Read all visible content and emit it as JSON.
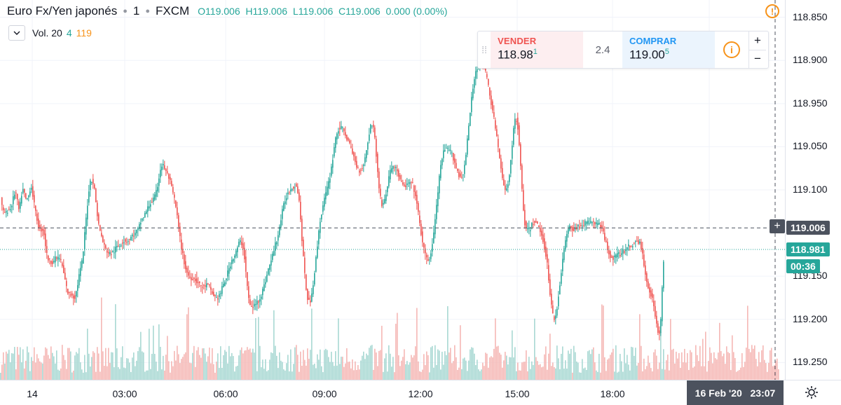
{
  "header": {
    "symbol": "Euro Fx/Yen japonés",
    "interval": "1",
    "exchange": "FXCM",
    "open": "O119.006",
    "high": "H119.006",
    "low": "L119.006",
    "close": "C119.006",
    "change": "0.000 (0.00%)"
  },
  "volume_legend": {
    "label": "Vol. 20",
    "value1": "4",
    "value2": "119"
  },
  "trade_panel": {
    "sell_label": "VENDER",
    "sell_price_main": "118.98",
    "sell_price_frac": "1",
    "spread": "2.4",
    "buy_label": "COMPRAR",
    "buy_price_main": "119.00",
    "buy_price_frac": "5",
    "plus": "+",
    "minus": "−",
    "info": "i"
  },
  "warning": "!",
  "price_axis": {
    "labels": [
      "119.250",
      "119.200",
      "119.150",
      "119.100",
      "119.050",
      "118.950",
      "118.900",
      "118.850"
    ],
    "crosshair_price": "119.006",
    "last_price": "118.981",
    "countdown": "00:36"
  },
  "time_axis": {
    "labels": [
      "14",
      "03:00",
      "06:00",
      "09:00",
      "12:00",
      "15:00",
      "18:00"
    ],
    "cursor_date": "16 Feb '20",
    "cursor_time": "23:07"
  },
  "colors": {
    "up": "#26a69a",
    "down": "#ef5350",
    "vol_up": "#a8d8d3",
    "vol_down": "#f5b7b5",
    "grid": "#f0f3fa"
  },
  "chart_data": {
    "type": "candlestick",
    "title": "Euro Fx/Yen japonés · 1 · FXCM",
    "ylim": [
      118.83,
      119.27
    ],
    "x_ticks": [
      "14",
      "03:00",
      "06:00",
      "09:00",
      "12:00",
      "15:00",
      "18:00"
    ],
    "y_ticks": [
      118.85,
      118.9,
      118.95,
      119.05,
      119.1,
      119.15,
      119.2,
      119.25
    ],
    "grid": true,
    "crosshair_price": 119.006,
    "last_price": 118.981,
    "path_x": [
      0,
      2,
      4,
      6,
      8,
      10,
      12,
      14,
      16,
      18,
      20,
      22,
      24,
      26,
      28,
      30,
      32,
      34,
      36,
      38,
      40,
      42,
      44,
      46,
      48,
      50,
      52,
      54,
      56,
      58,
      60,
      62,
      64,
      66,
      68,
      70,
      72,
      74,
      76,
      78,
      80,
      82,
      84,
      86,
      88,
      90,
      92,
      94,
      96,
      98,
      100,
      102,
      104,
      106,
      108,
      110,
      112,
      114,
      116,
      118,
      120,
      122,
      124,
      126,
      128,
      130,
      132,
      134,
      136,
      138,
      140,
      142,
      144,
      146,
      148,
      150,
      152,
      154,
      156,
      158,
      160,
      162,
      164,
      166,
      168,
      170,
      172,
      174,
      176,
      178,
      180,
      182,
      184,
      186,
      188,
      190,
      192,
      194,
      196,
      198,
      200,
      202,
      204,
      206,
      208,
      210,
      212,
      214,
      216,
      218,
      220,
      222,
      224,
      226,
      228,
      230,
      232,
      234,
      236,
      238,
      240,
      242,
      244,
      246,
      248,
      250,
      252,
      254,
      256,
      258,
      260,
      262,
      264,
      266,
      268,
      270,
      272,
      274,
      276,
      278,
      280,
      282,
      284,
      286,
      288,
      290,
      292,
      294,
      296,
      298,
      300,
      302,
      304,
      306,
      308,
      310,
      312,
      314,
      316,
      318,
      320,
      322,
      324,
      326,
      328,
      330,
      332,
      334,
      336,
      338,
      340,
      342,
      344,
      346,
      348,
      350,
      352,
      354,
      356,
      358,
      360,
      362,
      364,
      366,
      368,
      370,
      372,
      374,
      376,
      378,
      380,
      382,
      384,
      386,
      388,
      390,
      392,
      394,
      396,
      398,
      400,
      402,
      404,
      406,
      408,
      410,
      412,
      414,
      416,
      418,
      420,
      422,
      424,
      426,
      428,
      430,
      432,
      434,
      436,
      438,
      440,
      442,
      444,
      446,
      448,
      450,
      452,
      454,
      456,
      458,
      460,
      462,
      464,
      466,
      468,
      470,
      472,
      474,
      476,
      478,
      480,
      482,
      484,
      486,
      488,
      490,
      492,
      494,
      496,
      498,
      500,
      502,
      504,
      506,
      508,
      510,
      512,
      514,
      516,
      518,
      520,
      522,
      524,
      526,
      528,
      530,
      532,
      534,
      536,
      538,
      540,
      542,
      544,
      546,
      548,
      550,
      552,
      554,
      556,
      558,
      560,
      562,
      564,
      566,
      568,
      570,
      572,
      574,
      576,
      578,
      580,
      582,
      584,
      586,
      588,
      590,
      592,
      594,
      596,
      598,
      600,
      602,
      604,
      606,
      608,
      610,
      612,
      614,
      616,
      618,
      620,
      622,
      624,
      626,
      628,
      630,
      632,
      634,
      636,
      638,
      640,
      642,
      644,
      646,
      648,
      650,
      652,
      654,
      656,
      658,
      660,
      662,
      664,
      666,
      668,
      670,
      672,
      674,
      676,
      678,
      680,
      682,
      684,
      686,
      688,
      690,
      692,
      694,
      696,
      698,
      700,
      702,
      704,
      706,
      708,
      710,
      712,
      714,
      716,
      718,
      720,
      722,
      724,
      726,
      728,
      730,
      732,
      734,
      736,
      738,
      740,
      742,
      744,
      746,
      748,
      750,
      752,
      754,
      756,
      758,
      760,
      762,
      764,
      766,
      768,
      770,
      772,
      774,
      776,
      778,
      780,
      782,
      784,
      786,
      788,
      790,
      792,
      794,
      796,
      798,
      800,
      802,
      804,
      806,
      808,
      810,
      812,
      814,
      816,
      818,
      820,
      822,
      824,
      826,
      828,
      830,
      832,
      834,
      836,
      838,
      840,
      842,
      844,
      846,
      848,
      850,
      852,
      854,
      856,
      858,
      860,
      862,
      864,
      866,
      868,
      870,
      872,
      874,
      876,
      878,
      880,
      882,
      884,
      886,
      888,
      890,
      892,
      894,
      896,
      898,
      900,
      902,
      904,
      906,
      908,
      910,
      912,
      914,
      916,
      918,
      920,
      922,
      924,
      926,
      928,
      930,
      932,
      934,
      936,
      938,
      940,
      942,
      944,
      946,
      948,
      950,
      952,
      954,
      956,
      958,
      960,
      962,
      964,
      966,
      968,
      970,
      972,
      974,
      976,
      978,
      980,
      982,
      984,
      986,
      988,
      990,
      992,
      994,
      996,
      998,
      1000,
      1002,
      1004,
      1006,
      1008,
      1010,
      1012,
      1014,
      1016,
      1018,
      1020,
      1022,
      1024,
      1026,
      1028,
      1030,
      1032,
      1034,
      1036,
      1038,
      1040,
      1042,
      1044,
      1046,
      1048,
      1050,
      1052,
      1054,
      1056,
      1058,
      1060,
      1062,
      1064,
      1066,
      1068,
      1070,
      1072,
      1074,
      1076,
      1078,
      1080,
      1082,
      1084,
      1086,
      1088,
      1090,
      1092,
      1094,
      1096,
      1098,
      1100,
      1102,
      1104,
      1106,
      1108,
      1110
    ],
    "path_close": [
      119.041,
      119.031,
      119.024,
      119.024,
      119.023,
      119.026,
      119.028,
      119.028,
      119.033,
      119.04,
      119.046,
      119.045,
      119.036,
      119.027,
      119.033,
      119.045,
      119.05,
      119.045,
      119.039,
      119.04,
      119.043,
      119.051,
      119.053,
      119.044,
      119.033,
      119.023,
      119.016,
      119.008,
      119.005,
      119.004,
      119.004,
      118.999,
      118.986,
      118.975,
      118.97,
      118.968,
      118.967,
      118.967,
      118.968,
      118.97,
      118.971,
      118.971,
      118.971,
      118.967,
      118.961,
      118.953,
      118.945,
      118.937,
      118.931,
      118.929,
      118.929,
      118.929,
      118.926,
      118.926,
      118.932,
      118.941,
      118.951,
      118.958,
      118.966,
      118.979,
      118.999,
      119.017,
      119.034,
      119.05,
      119.06,
      119.062,
      119.058,
      119.05,
      119.036,
      119.021,
      119.01,
      119.002,
      118.996,
      118.99,
      118.985,
      118.981,
      118.979,
      118.977,
      118.976,
      118.977,
      118.978,
      118.979,
      118.982,
      118.984,
      118.985,
      118.986,
      118.988,
      118.99,
      118.991,
      118.991,
      118.991,
      118.992,
      118.993,
      118.995,
      118.997,
      118.998,
      118.999,
      119.002,
      119.004,
      119.008,
      119.013,
      119.016,
      119.019,
      119.022,
      119.025,
      119.029,
      119.032,
      119.035,
      119.037,
      119.039,
      119.042,
      119.047,
      119.055,
      119.065,
      119.074,
      119.078,
      119.078,
      119.075,
      119.071,
      119.068,
      119.064,
      119.059,
      119.052,
      119.046,
      119.039,
      119.03,
      119.019,
      119.006,
      118.994,
      118.983,
      118.974,
      118.966,
      118.959,
      118.954,
      118.951,
      118.949,
      118.948,
      118.948,
      118.947,
      118.946,
      118.944,
      118.942,
      118.94,
      118.939,
      118.938,
      118.938,
      118.939,
      118.94,
      118.939,
      118.937,
      118.934,
      118.93,
      118.928,
      118.926,
      118.925,
      118.925,
      118.928,
      118.931,
      118.936,
      118.94,
      118.944,
      118.949,
      118.954,
      118.959,
      118.964,
      118.969,
      118.972,
      118.974,
      118.978,
      118.983,
      118.988,
      118.99,
      118.988,
      118.983,
      118.971,
      118.955,
      118.938,
      118.924,
      118.916,
      118.914,
      118.915,
      118.916,
      118.918,
      118.92,
      118.922,
      118.925,
      118.929,
      118.934,
      118.939,
      118.945,
      118.952,
      118.958,
      118.963,
      118.968,
      118.974,
      118.981,
      118.987,
      118.992,
      118.998,
      119.007,
      119.016,
      119.025,
      119.032,
      119.038,
      119.043,
      119.046,
      119.049,
      119.051,
      119.053,
      119.054,
      119.055,
      119.054,
      119.049,
      119.037,
      119.016,
      118.993,
      118.971,
      118.951,
      118.936,
      118.925,
      118.92,
      118.922,
      118.931,
      118.942,
      118.955,
      118.97,
      118.986,
      119.002,
      119.014,
      119.024,
      119.032,
      119.039,
      119.045,
      119.052,
      119.058,
      119.066,
      119.076,
      119.087,
      119.1,
      119.11,
      119.116,
      119.12,
      119.121,
      119.121,
      119.12,
      119.118,
      119.115,
      119.11,
      119.106,
      119.102,
      119.098,
      119.093,
      119.088,
      119.082,
      119.078,
      119.074,
      119.073,
      119.074,
      119.076,
      119.081,
      119.087,
      119.096,
      119.106,
      119.116,
      119.124,
      119.127,
      119.122,
      119.109,
      119.09,
      119.071,
      119.053,
      119.04,
      119.034,
      119.034,
      119.039,
      119.046,
      119.055,
      119.064,
      119.071,
      119.076,
      119.078,
      119.077,
      119.075,
      119.071,
      119.067,
      119.062,
      119.058,
      119.055,
      119.054,
      119.055,
      119.056,
      119.057,
      119.058,
      119.057,
      119.055,
      119.05,
      119.043,
      119.033,
      119.022,
      119.011,
      119.0,
      118.99,
      118.981,
      118.974,
      118.97,
      118.969,
      118.971,
      118.977,
      118.987,
      119.0,
      119.015,
      119.032,
      119.048,
      119.064,
      119.077,
      119.087,
      119.093,
      119.096,
      119.097,
      119.097,
      119.096,
      119.094,
      119.091,
      119.087,
      119.082,
      119.076,
      119.071,
      119.067,
      119.065,
      119.066,
      119.07,
      119.079,
      119.091,
      119.107,
      119.124,
      119.14,
      119.155,
      119.168,
      119.179,
      119.187,
      119.192,
      119.195,
      119.196,
      119.196,
      119.194,
      119.191,
      119.186,
      119.179,
      119.17,
      119.16,
      119.151,
      119.142,
      119.132,
      119.122,
      119.111,
      119.099,
      119.086,
      119.074,
      119.062,
      119.054,
      119.05,
      119.052,
      119.058,
      119.069,
      119.085,
      119.103,
      119.119,
      119.13,
      119.132,
      119.123,
      119.104,
      119.077,
      119.049,
      119.026,
      119.012,
      119.005,
      119.003,
      119.004,
      119.006,
      119.009,
      119.012,
      119.013,
      119.012,
      119.01,
      119.006,
      119.002,
      118.998,
      118.992,
      118.984,
      118.975,
      118.963,
      118.948,
      118.931,
      118.916,
      118.905,
      118.902,
      118.905,
      118.914,
      118.927,
      118.941,
      118.956,
      118.969,
      118.981,
      118.991,
      118.999,
      119.004,
      119.006,
      119.006,
      119.005,
      119.005,
      119.005,
      119.006,
      119.007,
      119.008,
      119.009,
      119.01,
      119.01,
      119.011,
      119.011,
      119.012,
      119.013,
      119.013,
      119.013,
      119.012,
      119.011,
      119.011,
      119.011,
      119.011,
      119.009,
      119.005,
      118.999,
      118.993,
      118.988,
      118.982,
      118.978,
      118.974,
      118.972,
      118.971,
      118.972,
      118.973,
      118.974,
      118.975,
      118.976,
      118.977,
      118.979,
      118.98,
      118.982,
      118.983,
      118.984,
      118.984,
      118.985,
      118.987,
      118.989,
      118.99,
      118.991,
      118.99,
      118.988,
      118.982,
      118.974,
      118.963,
      118.952,
      118.944,
      118.938,
      118.934,
      118.929,
      118.923,
      118.915,
      118.905,
      118.895,
      118.887,
      118.885,
      118.898,
      118.935,
      118.965
    ]
  }
}
